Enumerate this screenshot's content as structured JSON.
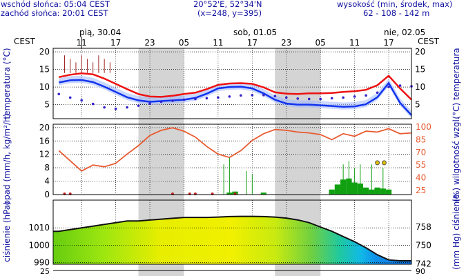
{
  "header": {
    "sunrise": "wschód słońca: 05:04 CEST",
    "sunset": "zachód słońca: 20:01 CEST",
    "coords": "20°52'E, 52°34'N",
    "grid": "(x=248, y=395)",
    "altitude_label": "wysokość (min, środek, max)",
    "altitude_values": "62 - 108 - 142 m"
  },
  "timeline": {
    "timezone": "CEST",
    "days": [
      "pią, 30.04",
      "sob, 01.05",
      "nie, 02.05"
    ],
    "hours": [
      "11",
      "17",
      "23",
      "05",
      "11",
      "17",
      "23",
      "05",
      "11",
      "17"
    ],
    "hour_positions": [
      11,
      17,
      23,
      29,
      35,
      41,
      47,
      53,
      59,
      65
    ]
  },
  "colors": {
    "grid": "#000000",
    "night": "#d4d4d4",
    "ink": "#1010a0",
    "red": "#ee1111",
    "blue": "#1133ee",
    "orange": "#e85a30",
    "green": "#10a010"
  },
  "chart_data": [
    {
      "type": "line",
      "panel": "temperature",
      "ylabel_left": "temperatura (°C)",
      "ylabel_right": "(°C) temperatura",
      "ylim": [
        1,
        21
      ],
      "yticks": [
        5,
        10,
        15,
        20
      ],
      "x_hours": [
        7,
        9,
        11,
        13,
        15,
        17,
        19,
        21,
        23,
        25,
        27,
        29,
        31,
        33,
        35,
        37,
        39,
        41,
        43,
        45,
        47,
        49,
        51,
        53,
        55,
        57,
        59,
        61,
        63,
        65,
        67,
        69
      ],
      "series": [
        {
          "color": "#ee1111",
          "values": [
            12.8,
            13.5,
            13.9,
            13.6,
            12.4,
            10.9,
            9.4,
            8.0,
            7.3,
            7.2,
            7.5,
            8.0,
            8.4,
            9.4,
            10.6,
            11.0,
            11.1,
            10.9,
            9.9,
            8.5,
            8.1,
            8.0,
            8.2,
            8.2,
            8.3,
            8.6,
            8.8,
            9.2,
            10.5,
            13.2,
            9.6,
            6.4
          ]
        },
        {
          "color": "#1133ee",
          "values": [
            11.3,
            11.9,
            12.0,
            11.4,
            10.1,
            8.6,
            7.1,
            6.2,
            5.8,
            6.0,
            6.2,
            6.4,
            6.9,
            8.1,
            9.6,
            10.0,
            10.1,
            9.6,
            8.2,
            6.4,
            5.3,
            5.0,
            5.0,
            4.8,
            4.6,
            4.4,
            4.5,
            5.1,
            7.1,
            11.1,
            5.5,
            2.0
          ]
        },
        {
          "color": "#3322cc",
          "style": "dotted",
          "values": [
            8.0,
            7.0,
            6.2,
            5.2,
            4.2,
            3.8,
            4.2,
            4.7,
            5.3,
            5.8,
            6.1,
            6.4,
            6.6,
            6.8,
            7.0,
            7.3,
            7.6,
            7.7,
            7.7,
            7.4,
            7.0,
            6.7,
            6.6,
            6.6,
            6.8,
            7.0,
            7.3,
            7.6,
            8.4,
            10.0,
            10.4,
            10.2
          ]
        }
      ]
    },
    {
      "type": "bar",
      "panel": "precipitation",
      "ylabel_left": "opad (mm/h, kg/m²/h)",
      "ylabel_right": "(%) wilgotność wzgl.",
      "ylim": [
        0,
        21
      ],
      "yticks": [
        0,
        4,
        8,
        12,
        16,
        20
      ],
      "right_ticks": [
        "25",
        "40",
        "55",
        "70",
        "85",
        "100"
      ],
      "humidity_range": [
        25,
        100
      ],
      "humidity_x": [
        7,
        9,
        11,
        13,
        15,
        17,
        19,
        21,
        23,
        25,
        27,
        29,
        31,
        33,
        35,
        37,
        39,
        41,
        43,
        45,
        47,
        49,
        51,
        53,
        55,
        57,
        59,
        61,
        63,
        65,
        67,
        69
      ],
      "humidity": [
        72,
        60,
        48,
        55,
        53,
        57,
        68,
        78,
        90,
        96,
        99,
        95,
        88,
        77,
        68,
        64,
        72,
        84,
        92,
        97,
        96,
        94,
        93,
        91,
        85,
        92,
        89,
        95,
        94,
        98,
        92,
        93
      ],
      "bars_x": [
        37,
        38,
        43,
        55,
        56,
        57,
        58,
        59,
        60,
        61,
        62,
        63,
        64,
        65
      ],
      "bars_y": [
        0.6,
        0.9,
        0.6,
        1.5,
        3.0,
        4.5,
        4.8,
        3.6,
        3.3,
        2.1,
        1.5,
        2.1,
        1.8,
        1.5
      ]
    },
    {
      "type": "area",
      "panel": "pressure",
      "ylabel_left": "ciśnienie (hPa)",
      "ylabel_right": "(mm Hg) ciśnienie",
      "ylim": [
        989,
        1026
      ],
      "yticks": [
        990,
        1000,
        1010
      ],
      "right_ticks": [
        "742",
        "750",
        "758"
      ],
      "x_hours": [
        7,
        9,
        11,
        13,
        15,
        17,
        19,
        21,
        23,
        25,
        27,
        29,
        31,
        33,
        35,
        37,
        39,
        41,
        43,
        45,
        47,
        49,
        51,
        53,
        55,
        57,
        59,
        61,
        63,
        65,
        67,
        69
      ],
      "values": [
        1008,
        1009,
        1010,
        1011,
        1012,
        1013,
        1014,
        1014,
        1014.5,
        1015,
        1015.5,
        1016,
        1016,
        1016,
        1016.2,
        1016.5,
        1016.6,
        1016.6,
        1016.5,
        1016.2,
        1015.6,
        1014.6,
        1013,
        1010.5,
        1008,
        1005,
        1002,
        998.5,
        994.5,
        991.5,
        991,
        991
      ]
    }
  ],
  "bottom_axis": {
    "left": "25",
    "right": "90"
  }
}
